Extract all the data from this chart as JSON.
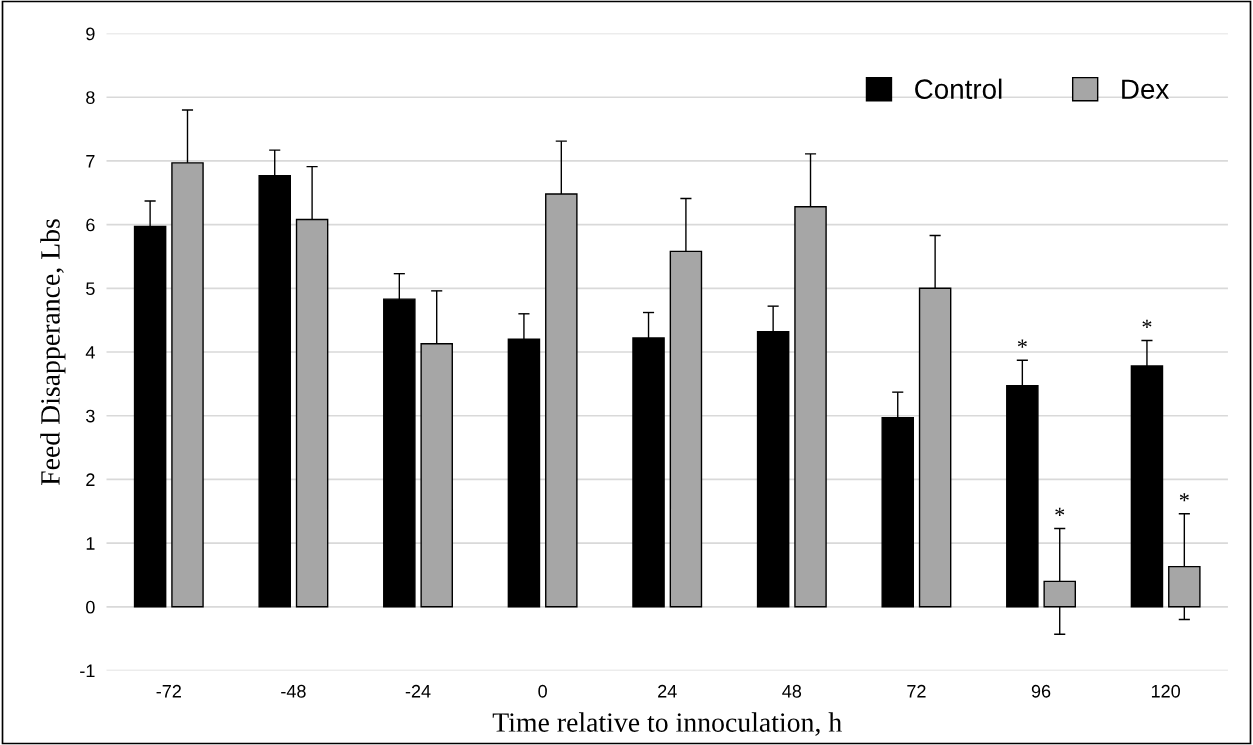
{
  "chart_data": {
    "type": "bar",
    "xlabel": "Time relative to innoculation, h",
    "ylabel": "Feed Disapperance, Lbs",
    "categories": [
      "-72",
      "-48",
      "-24",
      "0",
      "24",
      "48",
      "72",
      "96",
      "120"
    ],
    "series": [
      {
        "name": "Control",
        "color": "#000000",
        "values": [
          5.97,
          6.77,
          4.83,
          4.2,
          4.22,
          4.32,
          2.97,
          3.47,
          3.78
        ],
        "errors": [
          0.4,
          0.4,
          0.4,
          0.4,
          0.4,
          0.4,
          0.4,
          0.4,
          0.4
        ],
        "value_labels": [
          null,
          null,
          null,
          null,
          null,
          null,
          null,
          "*",
          "*"
        ]
      },
      {
        "name": "Dex",
        "color": "#a6a6a6",
        "values": [
          6.97,
          6.08,
          4.13,
          6.48,
          5.58,
          6.28,
          5.0,
          0.4,
          0.63
        ],
        "errors": [
          0.83,
          0.83,
          0.83,
          0.83,
          0.83,
          0.83,
          0.83,
          0.83,
          0.83
        ],
        "value_labels": [
          null,
          null,
          null,
          null,
          null,
          null,
          null,
          "*",
          "*"
        ]
      }
    ],
    "ylim": [
      -1,
      9
    ],
    "yticks": [
      -1,
      0,
      1,
      2,
      3,
      4,
      5,
      6,
      7,
      8,
      9
    ],
    "grid": "y",
    "legend": "top right"
  }
}
